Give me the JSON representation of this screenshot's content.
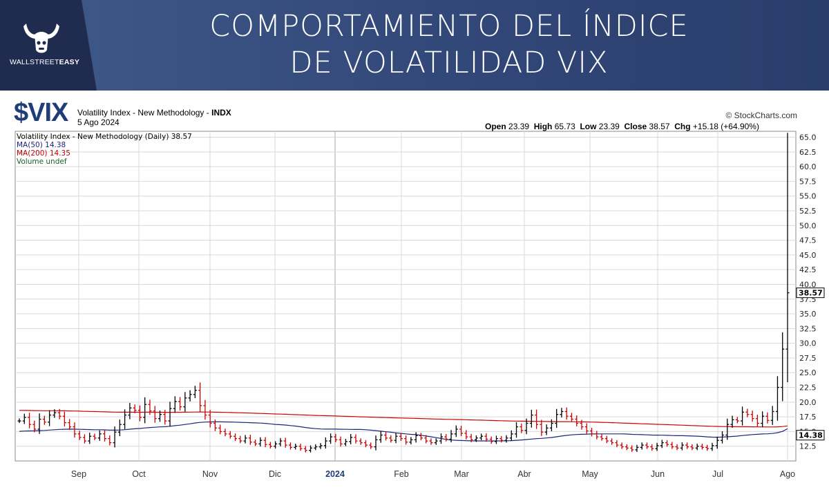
{
  "banner": {
    "title_line1": "COMPORTAMIENTO DEL ÍNDICE",
    "title_line2": "DE VOLATILIDAD VIX",
    "logo_text_regular": "WALLSTREET",
    "logo_text_bold": "EASY"
  },
  "header": {
    "symbol": "$VIX",
    "name": "Volatility Index - New Methodology -",
    "exchange": "INDX",
    "date": "5 Ago 2024",
    "credit": "© StockCharts.com",
    "ohlc": {
      "open_label": "Open",
      "open": "23.39",
      "high_label": "High",
      "high": "65.73",
      "low_label": "Low",
      "low": "23.39",
      "close_label": "Close",
      "close": "38.57",
      "chg_label": "Chg",
      "chg": "+15.18 (+64.90%)"
    }
  },
  "legend": {
    "line1": "Volatility Index - New Methodology (Daily) 38.57",
    "line2": "MA(50) 14.38",
    "line3": "MA(200) 14.35",
    "line4": "Volume undef"
  },
  "colors": {
    "up": "#000000",
    "down": "#cc0000",
    "ma50": "#1a237e",
    "ma200": "#cc0000",
    "grid": "#d9d9d9",
    "banner": "#3f5a88",
    "symbol": "#1f3d78"
  },
  "chart_data": {
    "type": "ohlc",
    "ylim": [
      10,
      66
    ],
    "y_ticks": [
      12.5,
      15.0,
      17.5,
      20.0,
      22.5,
      25.0,
      27.5,
      30.0,
      32.5,
      35.0,
      37.5,
      40.0,
      42.5,
      45.0,
      47.5,
      50.0,
      52.5,
      55.0,
      57.5,
      60.0,
      62.5,
      65.0
    ],
    "y_tick_labels": [
      "12.5",
      "15.0",
      "17.5",
      "20.0",
      "22.5",
      "25.0",
      "27.5",
      "30.0",
      "32.5",
      "35.0",
      "37.5",
      "40.0",
      "42.5",
      "45.0",
      "47.5",
      "50.0",
      "52.5",
      "55.0",
      "57.5",
      "60.0",
      "62.5",
      "65.0"
    ],
    "x_labels": [
      "Sep",
      "Oct",
      "Nov",
      "Dic",
      "2024",
      "Feb",
      "Mar",
      "Abr",
      "May",
      "Jun",
      "Jul",
      "Ago"
    ],
    "price_markers": [
      {
        "label": "38.57",
        "value": 38.57
      },
      {
        "label": "14.38",
        "value": 14.38
      }
    ],
    "close_series": [
      16.8,
      17.4,
      16.2,
      15.4,
      17.1,
      16.6,
      17.8,
      18.2,
      17.6,
      16.5,
      15.8,
      14.6,
      14.0,
      13.4,
      14.2,
      13.9,
      14.6,
      13.8,
      13.1,
      14.9,
      16.2,
      17.8,
      19.0,
      18.6,
      17.4,
      19.6,
      18.5,
      17.2,
      17.9,
      16.8,
      18.9,
      20.1,
      19.2,
      20.7,
      21.3,
      22.0,
      19.4,
      17.8,
      16.4,
      15.6,
      15.0,
      14.6,
      14.2,
      13.8,
      13.4,
      13.9,
      13.2,
      12.9,
      13.5,
      12.8,
      12.5,
      12.9,
      13.4,
      12.7,
      12.3,
      12.5,
      12.1,
      11.8,
      12.2,
      12.4,
      12.6,
      13.4,
      14.1,
      13.6,
      12.9,
      13.3,
      14.0,
      13.4,
      13.1,
      12.7,
      12.4,
      13.6,
      14.4,
      13.9,
      13.5,
      14.2,
      13.8,
      13.2,
      13.6,
      14.3,
      13.9,
      13.4,
      13.1,
      13.4,
      14.1,
      13.7,
      14.6,
      15.4,
      14.7,
      14.1,
      13.6,
      13.9,
      14.2,
      13.7,
      13.3,
      13.8,
      13.5,
      13.9,
      14.6,
      15.8,
      15.2,
      16.4,
      17.8,
      16.2,
      14.9,
      15.6,
      16.4,
      17.9,
      18.4,
      17.6,
      17.1,
      16.4,
      15.8,
      15.1,
      14.6,
      14.1,
      13.8,
      13.4,
      13.1,
      12.7,
      12.4,
      12.2,
      11.9,
      12.3,
      12.7,
      12.4,
      12.1,
      12.6,
      13.1,
      12.8,
      12.4,
      12.2,
      12.7,
      12.4,
      12.2,
      12.5,
      12.3,
      12.1,
      12.6,
      13.5,
      14.4,
      16.2,
      17.0,
      16.8,
      18.3,
      17.9,
      17.2,
      16.4,
      17.6,
      16.9,
      18.4,
      22.5,
      29.0,
      38.57
    ]
  }
}
